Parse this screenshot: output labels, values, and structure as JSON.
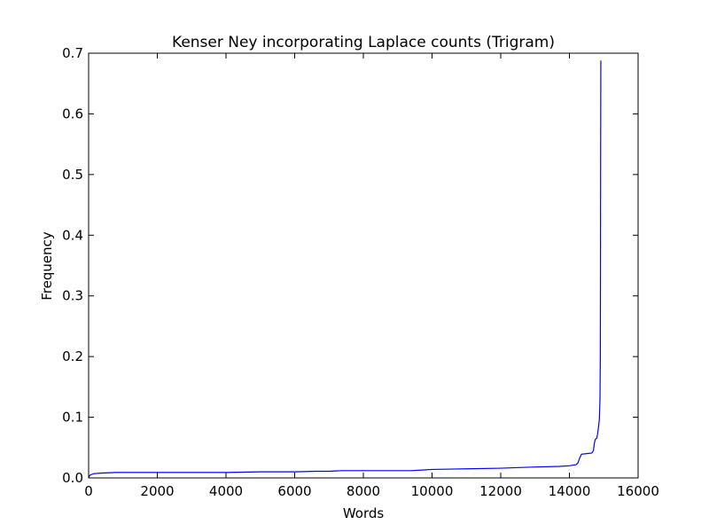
{
  "chart_data": {
    "type": "line",
    "title": "Kenser Ney incorporating Laplace counts (Trigram)",
    "xlabel": "Words",
    "ylabel": "Frequency",
    "xlim": [
      0,
      16000
    ],
    "ylim": [
      0,
      0.7
    ],
    "xticks": [
      0,
      2000,
      4000,
      6000,
      8000,
      10000,
      12000,
      14000,
      16000
    ],
    "yticks": [
      0.0,
      0.1,
      0.2,
      0.3,
      0.4,
      0.5,
      0.6,
      0.7
    ],
    "xtick_labels": [
      "0",
      "2000",
      "4000",
      "6000",
      "8000",
      "10000",
      "12000",
      "14000",
      "16000"
    ],
    "ytick_labels": [
      "0.0",
      "0.1",
      "0.2",
      "0.3",
      "0.4",
      "0.5",
      "0.6",
      "0.7"
    ],
    "grid": false,
    "line_color": "#0000ff",
    "series": [
      {
        "x": [
          0,
          50,
          150,
          400,
          800,
          2000,
          4000,
          5000,
          6000,
          6600,
          7000,
          7400,
          8000,
          9000,
          9400,
          9700,
          10000,
          11000,
          12000,
          13000,
          13700,
          14000,
          14200,
          14250,
          14300,
          14350,
          14500,
          14650,
          14700,
          14720,
          14750,
          14800,
          14820,
          14850,
          14870,
          14880,
          14890,
          14900,
          14905,
          14910,
          14915
        ],
        "y": [
          0.001,
          0.005,
          0.007,
          0.008,
          0.009,
          0.009,
          0.009,
          0.01,
          0.01,
          0.011,
          0.011,
          0.012,
          0.012,
          0.012,
          0.012,
          0.013,
          0.014,
          0.015,
          0.016,
          0.018,
          0.019,
          0.02,
          0.022,
          0.025,
          0.033,
          0.039,
          0.04,
          0.041,
          0.045,
          0.055,
          0.063,
          0.066,
          0.072,
          0.085,
          0.095,
          0.11,
          0.13,
          0.2,
          0.35,
          0.55,
          0.688
        ]
      }
    ]
  }
}
